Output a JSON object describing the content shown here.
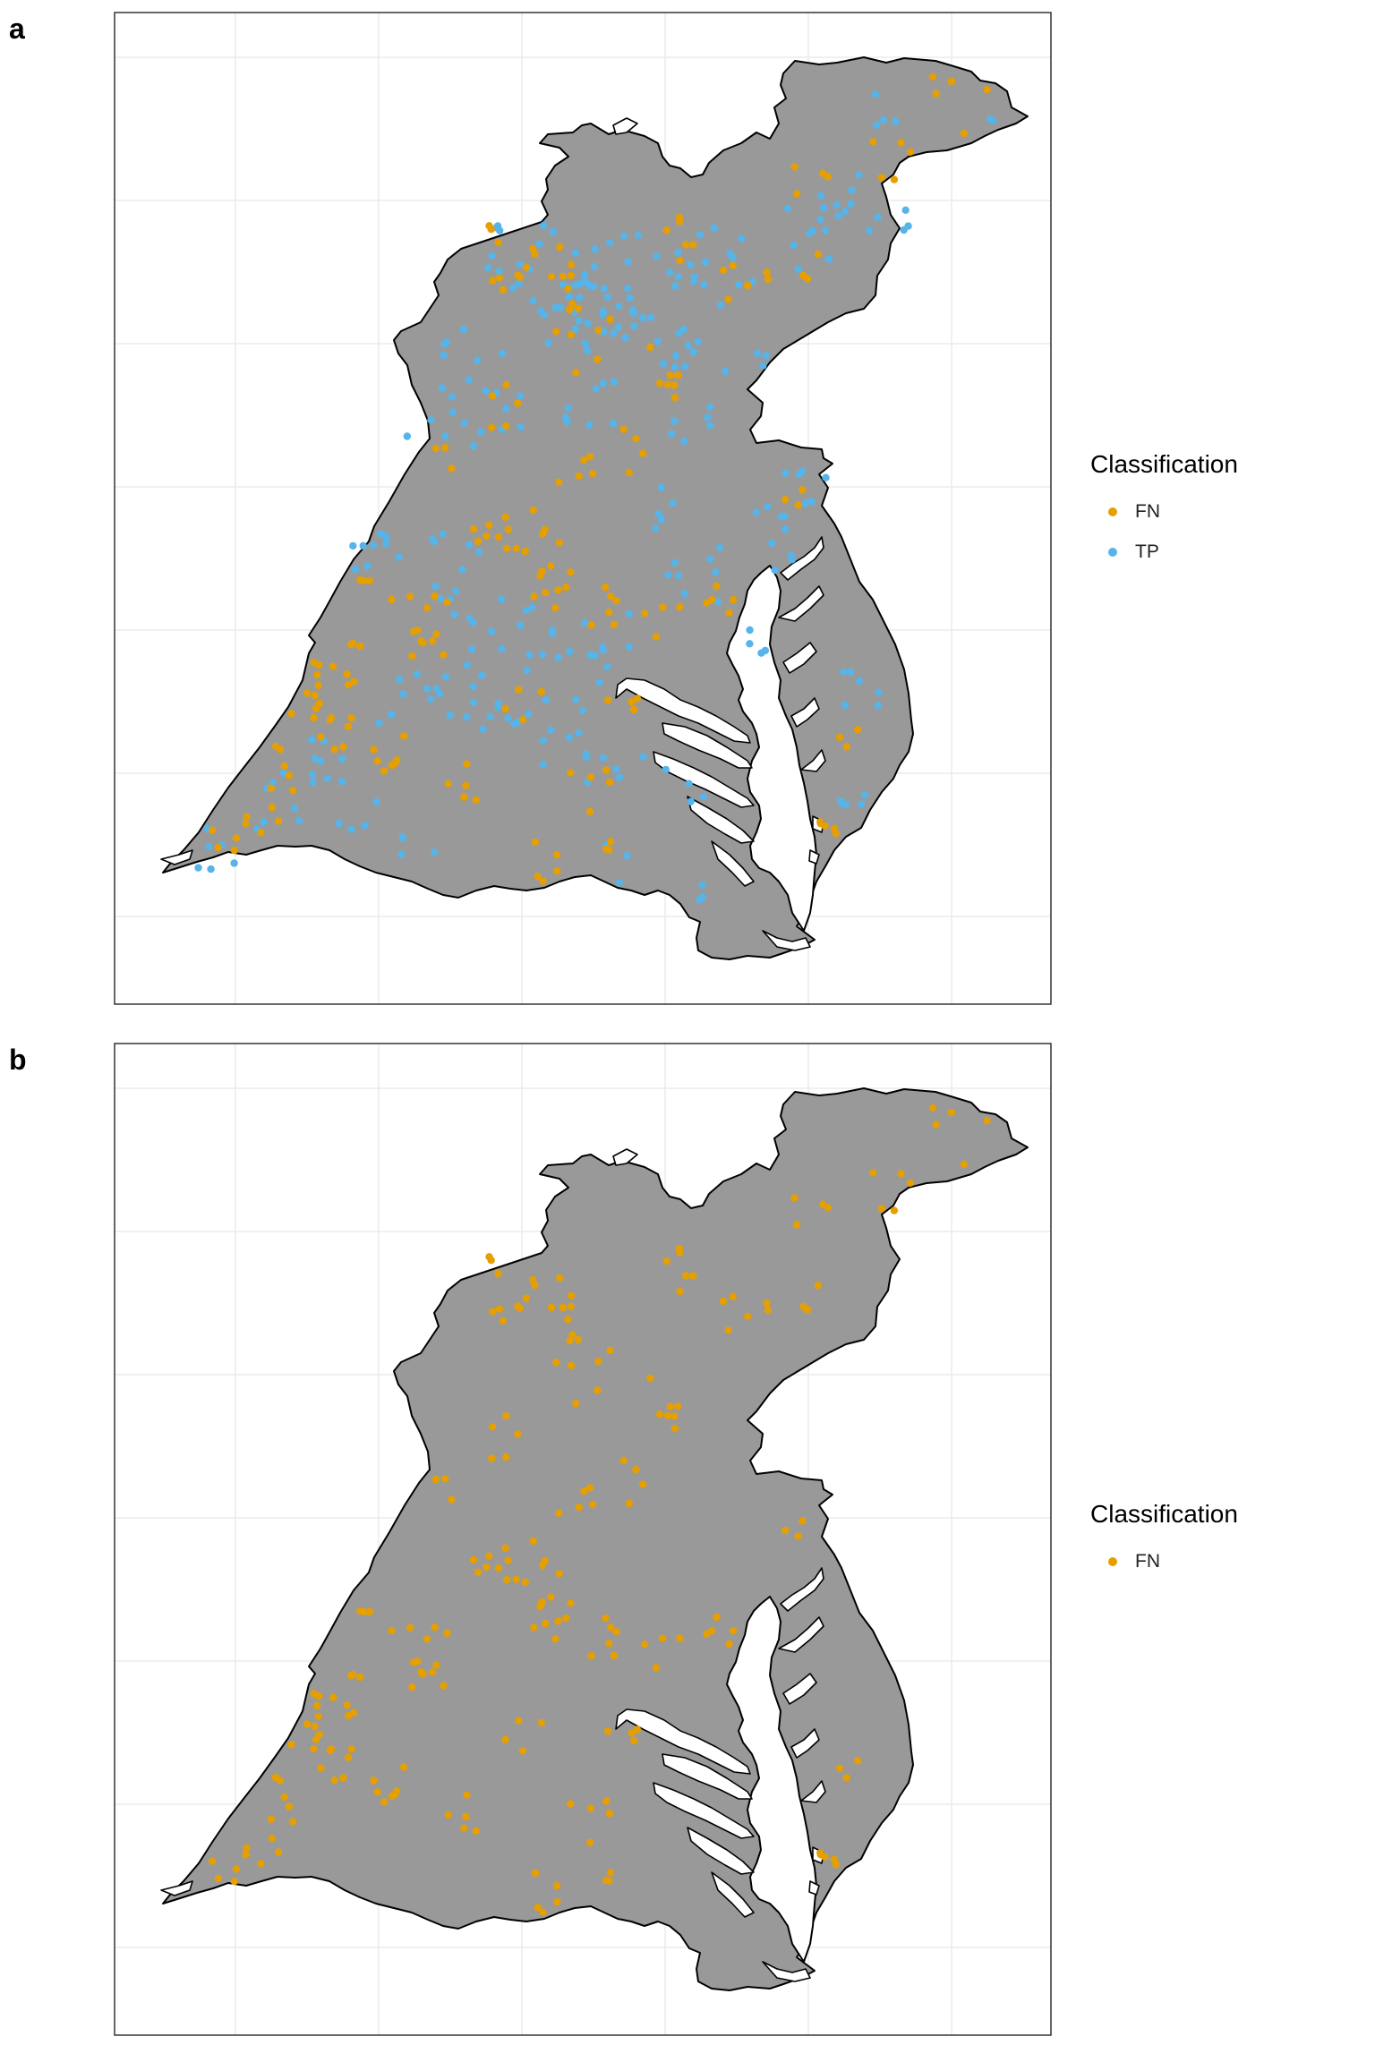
{
  "panels": [
    {
      "label": "a",
      "legend": {
        "title": "Classification",
        "entries": [
          {
            "name": "FN",
            "color": "#E69F00"
          },
          {
            "name": "TP",
            "color": "#56B4E9"
          }
        ]
      }
    },
    {
      "label": "b",
      "legend": {
        "title": "Classification",
        "entries": [
          {
            "name": "FN",
            "color": "#E69F00"
          }
        ]
      }
    }
  ],
  "style": {
    "land_fill": "#999999",
    "outline": "#000000",
    "grid": "#EBEBEB",
    "fn_color": "#E69F00",
    "tp_color": "#56B4E9"
  }
}
